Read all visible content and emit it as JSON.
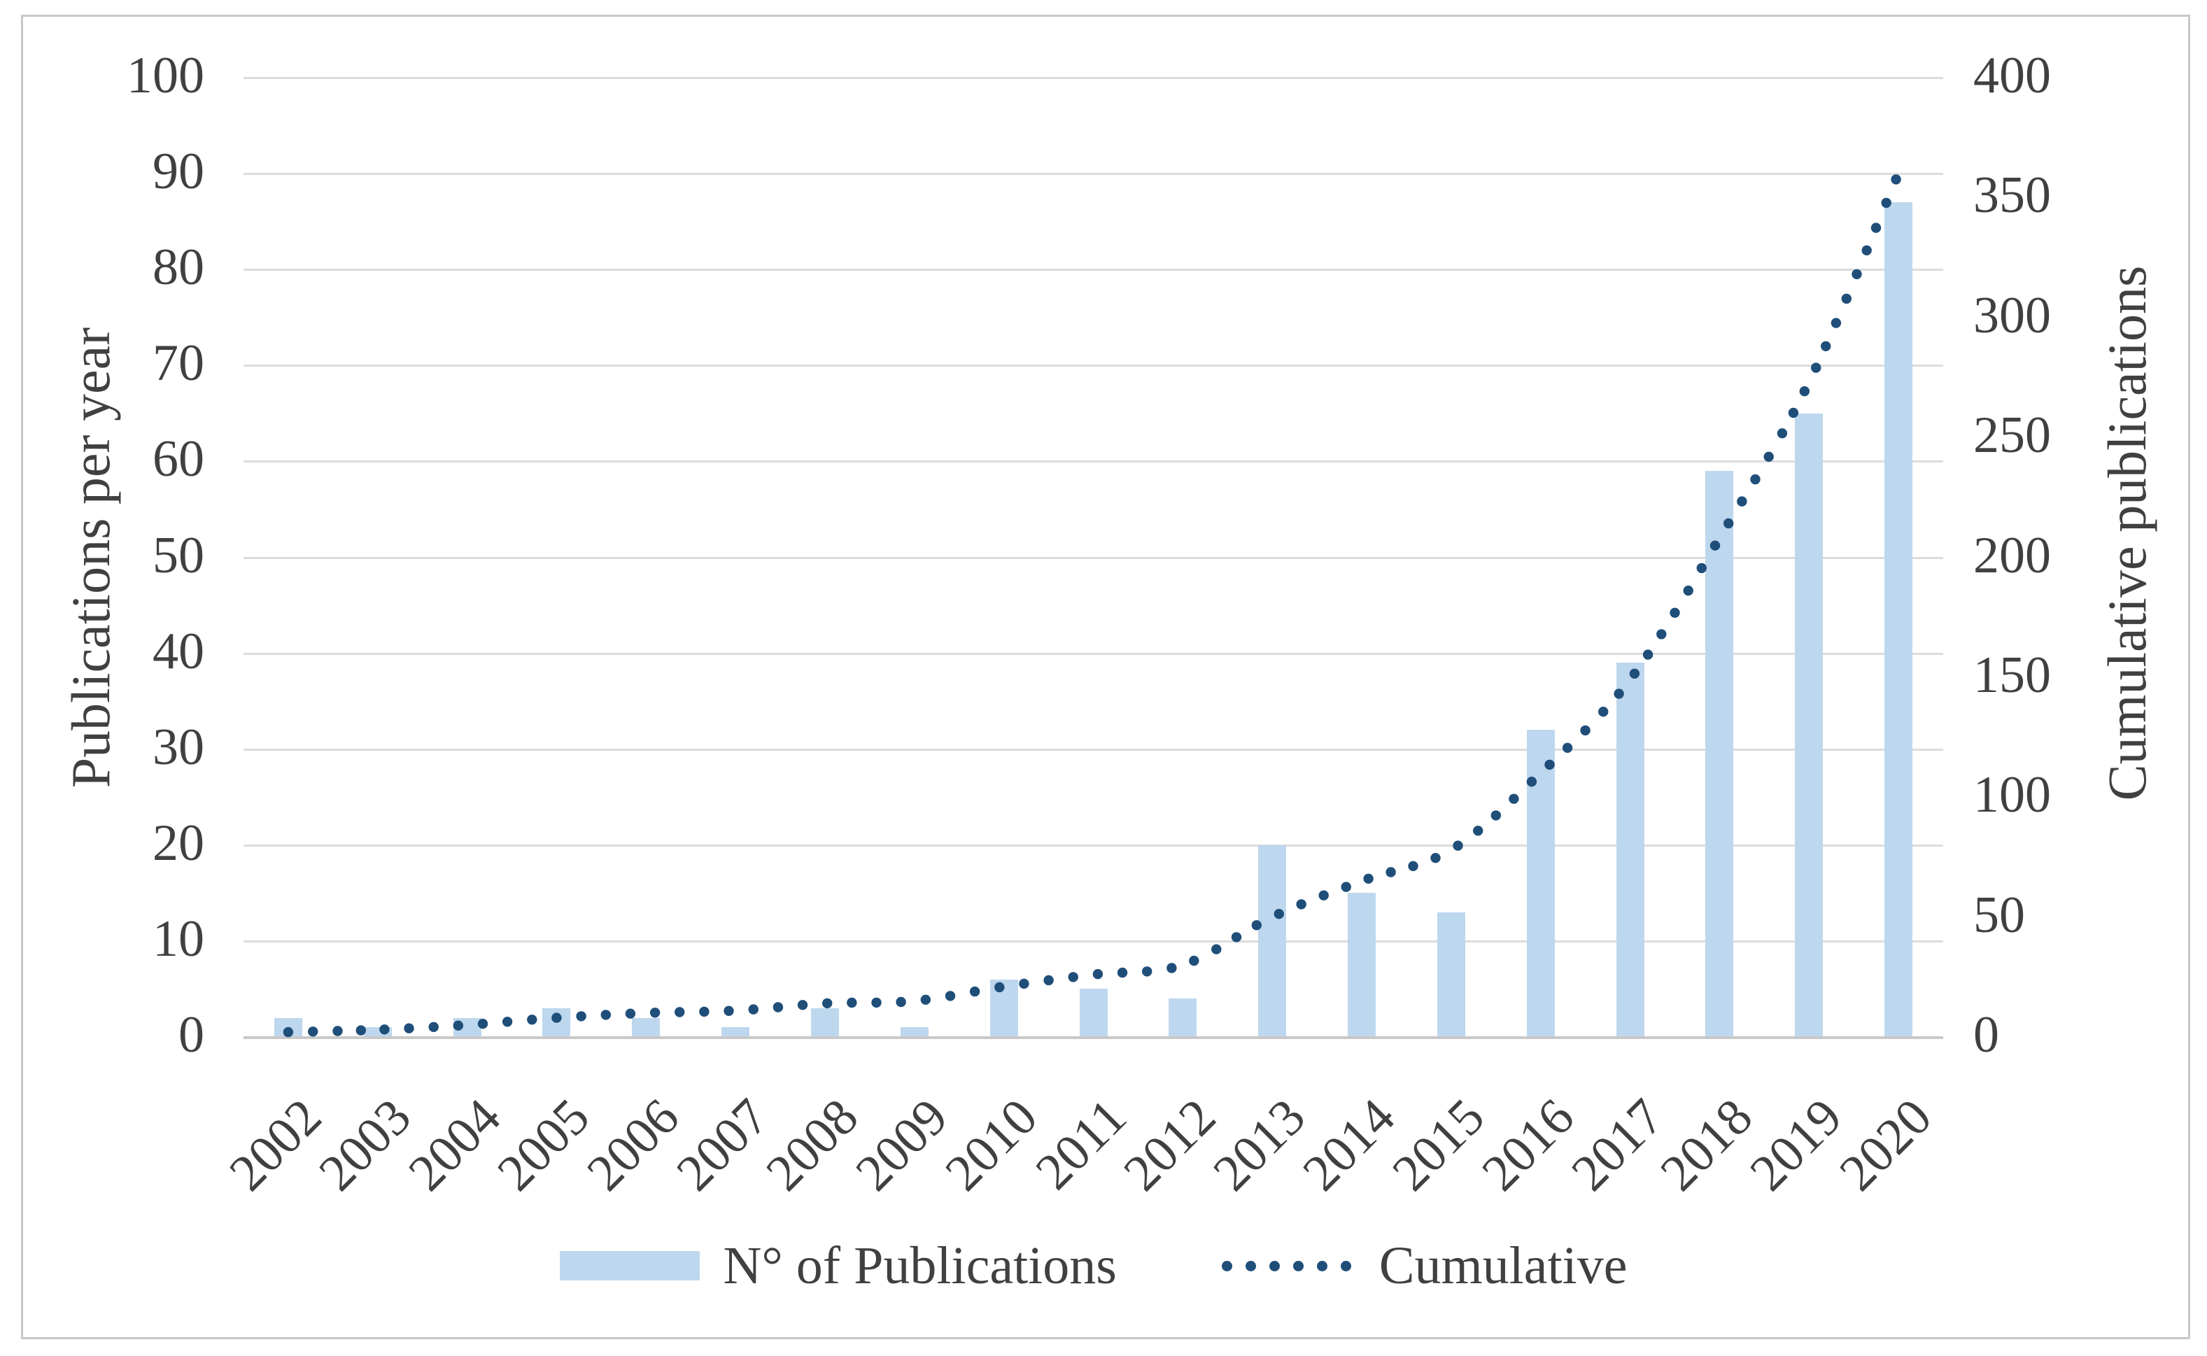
{
  "chart_data": {
    "type": "bar+line-combo",
    "categories": [
      "2002",
      "2003",
      "2004",
      "2005",
      "2006",
      "2007",
      "2008",
      "2009",
      "2010",
      "2011",
      "2012",
      "2013",
      "2014",
      "2015",
      "2016",
      "2017",
      "2018",
      "2019",
      "2020"
    ],
    "series": [
      {
        "name": "N° of Publications",
        "type": "bar",
        "axis": "left",
        "color": "#BDD7EE",
        "values": [
          2,
          1,
          2,
          3,
          2,
          1,
          3,
          1,
          6,
          5,
          4,
          20,
          15,
          13,
          32,
          39,
          59,
          65,
          87
        ]
      },
      {
        "name": "Cumulative",
        "type": "dotted-line",
        "axis": "right",
        "color": "#1F4E79",
        "values": [
          2,
          3,
          5,
          8,
          10,
          11,
          14,
          15,
          21,
          26,
          30,
          50,
          65,
          78,
          110,
          149,
          208,
          273,
          360
        ]
      }
    ],
    "left_axis": {
      "title": "Publications per year",
      "min": 0,
      "max": 100,
      "tick_step": 10,
      "tick_labels": [
        "0",
        "10",
        "20",
        "30",
        "40",
        "50",
        "60",
        "70",
        "80",
        "90",
        "100"
      ]
    },
    "right_axis": {
      "title": "Cumulative publications",
      "min": 0,
      "max": 400,
      "tick_step": 50,
      "tick_labels": [
        "0",
        "50",
        "100",
        "150",
        "200",
        "250",
        "300",
        "350",
        "400"
      ]
    },
    "grid": "horizontal-only",
    "legend_position": "bottom",
    "legend": [
      {
        "label": "N° of Publications",
        "swatch": "bar"
      },
      {
        "label": "Cumulative",
        "swatch": "dotted-line"
      }
    ],
    "colors": {
      "bar_fill": "#BDD7EE",
      "cumulative_dot": "#1F4E79",
      "gridline": "#DCDCDC",
      "axis_line": "#C9C9C9",
      "text": "#404040",
      "figure_border": "#C8C8C8"
    }
  }
}
